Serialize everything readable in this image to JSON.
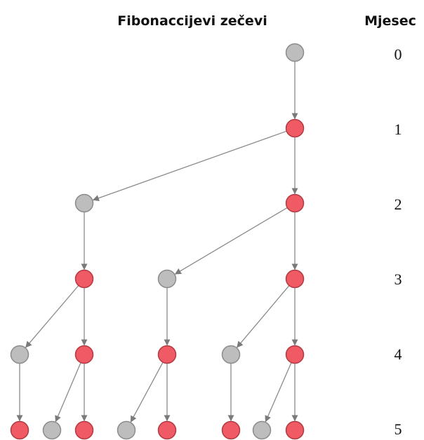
{
  "title": "Fibonaccijevi zečevi",
  "months_header": "Mjesec",
  "colors": {
    "adult": "#f05a64",
    "adult_stroke": "#b23a42",
    "young": "#bdbdbd",
    "young_stroke": "#8c8c8c",
    "edge": "#8a8a8a"
  },
  "months": [
    "0",
    "1",
    "2",
    "3",
    "4",
    "5"
  ],
  "nodes": [
    {
      "id": "r0",
      "month": 0,
      "type": "young"
    },
    {
      "id": "r1",
      "month": 1,
      "type": "adult"
    },
    {
      "id": "y2",
      "month": 2,
      "type": "young"
    },
    {
      "id": "r2",
      "month": 2,
      "type": "adult"
    },
    {
      "id": "r3a",
      "month": 3,
      "type": "adult"
    },
    {
      "id": "y3",
      "month": 3,
      "type": "young"
    },
    {
      "id": "r3b",
      "month": 3,
      "type": "adult"
    },
    {
      "id": "y4a",
      "month": 4,
      "type": "young"
    },
    {
      "id": "r4a",
      "month": 4,
      "type": "adult"
    },
    {
      "id": "r4b",
      "month": 4,
      "type": "adult"
    },
    {
      "id": "y4b",
      "month": 4,
      "type": "young"
    },
    {
      "id": "r4c",
      "month": 4,
      "type": "adult"
    },
    {
      "id": "r5a",
      "month": 5,
      "type": "adult"
    },
    {
      "id": "y5a",
      "month": 5,
      "type": "young"
    },
    {
      "id": "r5b",
      "month": 5,
      "type": "adult"
    },
    {
      "id": "y5b",
      "month": 5,
      "type": "young"
    },
    {
      "id": "r5c",
      "month": 5,
      "type": "adult"
    },
    {
      "id": "r5d",
      "month": 5,
      "type": "adult"
    },
    {
      "id": "y5c",
      "month": 5,
      "type": "young"
    },
    {
      "id": "r5e",
      "month": 5,
      "type": "adult"
    }
  ],
  "edges": [
    [
      "r0",
      "r1"
    ],
    [
      "r1",
      "y2"
    ],
    [
      "r1",
      "r2"
    ],
    [
      "y2",
      "r3a"
    ],
    [
      "r2",
      "y3"
    ],
    [
      "r2",
      "r3b"
    ],
    [
      "r3a",
      "y4a"
    ],
    [
      "r3a",
      "r4a"
    ],
    [
      "y3",
      "r4b"
    ],
    [
      "r3b",
      "y4b"
    ],
    [
      "r3b",
      "r4c"
    ],
    [
      "y4a",
      "r5a"
    ],
    [
      "r4a",
      "y5a"
    ],
    [
      "r4a",
      "r5b"
    ],
    [
      "r4b",
      "y5b"
    ],
    [
      "r4b",
      "r5c"
    ],
    [
      "y4b",
      "r5d"
    ],
    [
      "r4c",
      "y5c"
    ],
    [
      "r4c",
      "r5e"
    ]
  ]
}
